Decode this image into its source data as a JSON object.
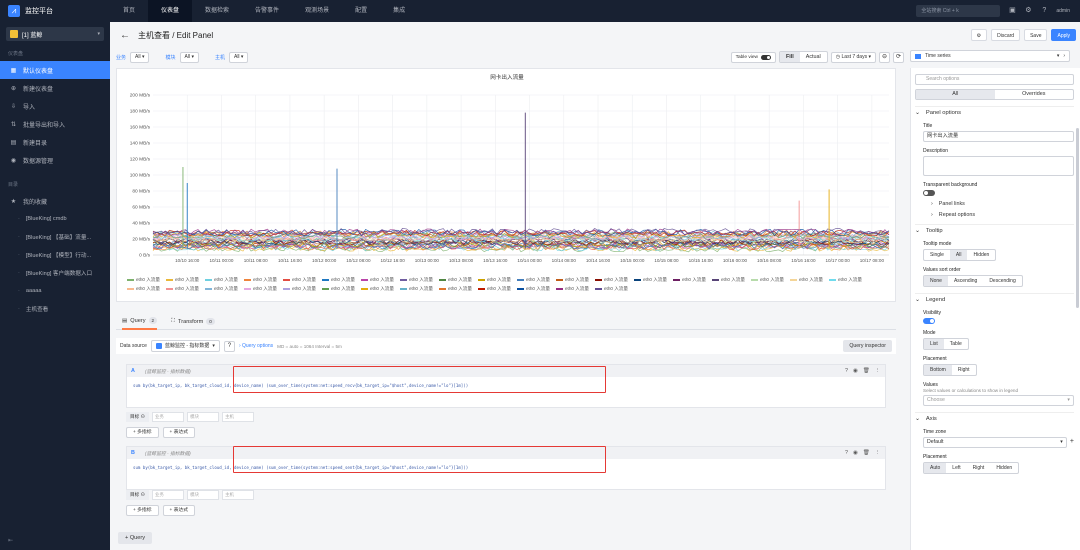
{
  "app": {
    "title": "监控平台",
    "logo_glyph": "⩘"
  },
  "topnav": {
    "items": [
      "首页",
      "仪表盘",
      "数据检索",
      "告警事件",
      "观测场景",
      "配置",
      "集成"
    ],
    "active_index": 1
  },
  "topbar": {
    "search_placeholder": "全站搜索 Ctrl + k",
    "user": "admin"
  },
  "sidebar": {
    "business": "[1] 蓝鲸",
    "group1": "仪表盘",
    "items": [
      {
        "label": "默认仪表盘",
        "icon": "dashboard-icon",
        "glyph": "▦"
      },
      {
        "label": "新建仪表盘",
        "icon": "plus-circle-icon",
        "glyph": "⊕"
      },
      {
        "label": "导入",
        "icon": "import-icon",
        "glyph": "⇩"
      },
      {
        "label": "批量导出和导入",
        "icon": "batch-icon",
        "glyph": "⇅"
      },
      {
        "label": "新建目录",
        "icon": "folder-icon",
        "glyph": "▤"
      },
      {
        "label": "数据源管理",
        "icon": "database-icon",
        "glyph": "◉"
      }
    ],
    "active_index": 0,
    "group2": "目录",
    "fav": {
      "label": "我的收藏",
      "glyph": "★"
    },
    "subitems": [
      "[BlueKing] cmdb",
      "[BlueKing] 【基础】流量...",
      "[BlueKing] 【模型】行动...",
      "[BlueKing] 客户端数据入口",
      "aaaaa",
      "主机查看"
    ]
  },
  "header": {
    "back_glyph": "←",
    "title": "主机查看 / Edit Panel",
    "buttons": {
      "settings_glyph": "⚙",
      "discard": "Discard",
      "save": "Save",
      "apply": "Apply"
    }
  },
  "variables": [
    {
      "label": "业务",
      "value": "All"
    },
    {
      "label": "模块",
      "value": "All"
    },
    {
      "label": "主机",
      "value": "All"
    }
  ],
  "view_controls": {
    "table_view": "Table view",
    "fill": "Fill",
    "actual": "Actual",
    "time_range": "Last 7 days",
    "zoom_glyph": "⊖",
    "refresh_glyph": "⟳",
    "clock_glyph": "◷"
  },
  "viz": {
    "name": "Time series"
  },
  "chart_data": {
    "type": "line",
    "title": "网卡出入流量",
    "ylim": [
      0,
      200
    ],
    "yunit": "MB/s",
    "yticks": [
      "0 B/s",
      "20 MB/s",
      "40 MB/s",
      "60 MB/s",
      "80 MB/s",
      "100 MB/s",
      "120 MB/s",
      "140 MB/s",
      "160 MB/s",
      "180 MB/s",
      "200 MB/s"
    ],
    "xticks": [
      "10/10 16:00",
      "10/11 00:00",
      "10/11 08:00",
      "10/11 16:00",
      "10/12 00:00",
      "10/12 08:00",
      "10/12 16:00",
      "10/13 00:00",
      "10/13 08:00",
      "10/13 16:00",
      "10/14 00:00",
      "10/14 08:00",
      "10/14 16:00",
      "10/15 00:00",
      "10/15 08:00",
      "10/15 16:00",
      "10/16 00:00",
      "10/16 08:00",
      "10/16 16:00",
      "10/17 00:00",
      "10/17 08:00"
    ],
    "grid": true,
    "legend_placement": "bottom",
    "spikes": [
      {
        "x": "10/10 15:00",
        "value": 110
      },
      {
        "x": "10/10 16:00",
        "value": 90
      },
      {
        "x": "10/12 03:00",
        "value": 108
      },
      {
        "x": "10/13 23:00",
        "value": 178
      },
      {
        "x": "10/16 15:00",
        "value": 68
      },
      {
        "x": "10/16 22:00",
        "value": 82
      }
    ],
    "baseline_band": [
      8,
      30
    ],
    "series": [
      {
        "name": "eth0 入流量",
        "color": "#7eb26d"
      },
      {
        "name": "eth0 入流量",
        "color": "#eab839"
      },
      {
        "name": "eth0 入流量",
        "color": "#6ed0e0"
      },
      {
        "name": "eth0 入流量",
        "color": "#ef843c"
      },
      {
        "name": "eth0 入流量",
        "color": "#e24d42"
      },
      {
        "name": "eth0 入流量",
        "color": "#1f78c1"
      },
      {
        "name": "eth0 入流量",
        "color": "#ba43a9"
      },
      {
        "name": "eth0 入流量",
        "color": "#705da0"
      },
      {
        "name": "eth0 入流量",
        "color": "#508642"
      },
      {
        "name": "eth0 入流量",
        "color": "#cca300"
      },
      {
        "name": "eth0 入流量",
        "color": "#447ebc"
      },
      {
        "name": "eth0 入流量",
        "color": "#c15c17"
      },
      {
        "name": "eth0 入流量",
        "color": "#890f02"
      },
      {
        "name": "eth0 入流量",
        "color": "#0a437c"
      },
      {
        "name": "eth0 入流量",
        "color": "#6d1f62"
      },
      {
        "name": "eth0 入流量",
        "color": "#584477"
      },
      {
        "name": "eth0 入流量",
        "color": "#b7dbab"
      },
      {
        "name": "eth0 入流量",
        "color": "#f4d598"
      },
      {
        "name": "eth0 入流量",
        "color": "#70dbed"
      },
      {
        "name": "eth0 入流量",
        "color": "#f9ba8f"
      },
      {
        "name": "eth0 入流量",
        "color": "#f29191"
      },
      {
        "name": "eth0 入流量",
        "color": "#82b5d8"
      },
      {
        "name": "eth0 入流量",
        "color": "#e5a8e2"
      },
      {
        "name": "eth0 入流量",
        "color": "#aea2e0"
      },
      {
        "name": "eth0 入流量",
        "color": "#629e51"
      },
      {
        "name": "eth0 入流量",
        "color": "#e5ac0e"
      },
      {
        "name": "eth0 入流量",
        "color": "#64b0c8"
      },
      {
        "name": "eth0 入流量",
        "color": "#e0752d"
      },
      {
        "name": "eth0 入流量",
        "color": "#bf1b00"
      },
      {
        "name": "eth0 入流量",
        "color": "#0a50a1"
      },
      {
        "name": "eth0 入流量",
        "color": "#962d82"
      },
      {
        "name": "eth0 入流量",
        "color": "#614d93"
      }
    ]
  },
  "query": {
    "tabs": [
      {
        "label": "Query",
        "count": "2"
      },
      {
        "label": "Transform",
        "count": "0"
      }
    ],
    "datasource_label": "Data source",
    "datasource": "蓝鲸监控 - 指标数据",
    "options_label": "Query options",
    "meta": "MD = auto = 1064    Interval = 5m",
    "inspector": "Query inspector",
    "queries": [
      {
        "letter": "A",
        "source": "(蓝鲸监控 - 指标数据)",
        "expr": "sum by(bk_target_ip, bk_target_cloud_id, device_name) (sum_over_time(system:net:speed_recv{bk_target_ip=\"$host\",device_name!=\"lo\"}[1m]))"
      },
      {
        "letter": "B",
        "source": "(蓝鲸监控 - 指标数据)",
        "expr": "sum by(bk_target_ip, bk_target_cloud_id, device_name) (sum_over_time(system:net:speed_sent{bk_target_ip=\"$host\",device_name!=\"lo\"}[1m]))"
      }
    ],
    "filter_labels": [
      "目标",
      "业务",
      "模块",
      "主机"
    ],
    "add_metric": "+ 多指标",
    "add_expr": "+ 表达式",
    "add_query": "+ Query"
  },
  "options": {
    "search_placeholder": "Search options",
    "tabs": [
      "All",
      "Overrides"
    ],
    "panel_options": "Panel options",
    "title_label": "Title",
    "title_value": "网卡出入流量",
    "description_label": "Description",
    "transparent_label": "Transparent background",
    "panel_links": "Panel links",
    "repeat_options": "Repeat options",
    "tooltip": "Tooltip",
    "tooltip_mode_label": "Tooltip mode",
    "tooltip_modes": [
      "Single",
      "All",
      "Hidden"
    ],
    "values_sort_label": "Values sort order",
    "values_sort": [
      "None",
      "Ascending",
      "Descending"
    ],
    "legend": "Legend",
    "visibility_label": "Visibility",
    "mode_label": "Mode",
    "modes": [
      "List",
      "Table"
    ],
    "placement_label": "Placement",
    "placements": [
      "Bottom",
      "Right"
    ],
    "values_label": "Values",
    "values_sub": "Select values or calculations to show in legend",
    "choose": "Choose",
    "axis": "Axis",
    "timezone_label": "Time zone",
    "timezone_value": "Default",
    "axis_placement_label": "Placement",
    "axis_placements": [
      "Auto",
      "Left",
      "Right",
      "Hidden"
    ]
  }
}
